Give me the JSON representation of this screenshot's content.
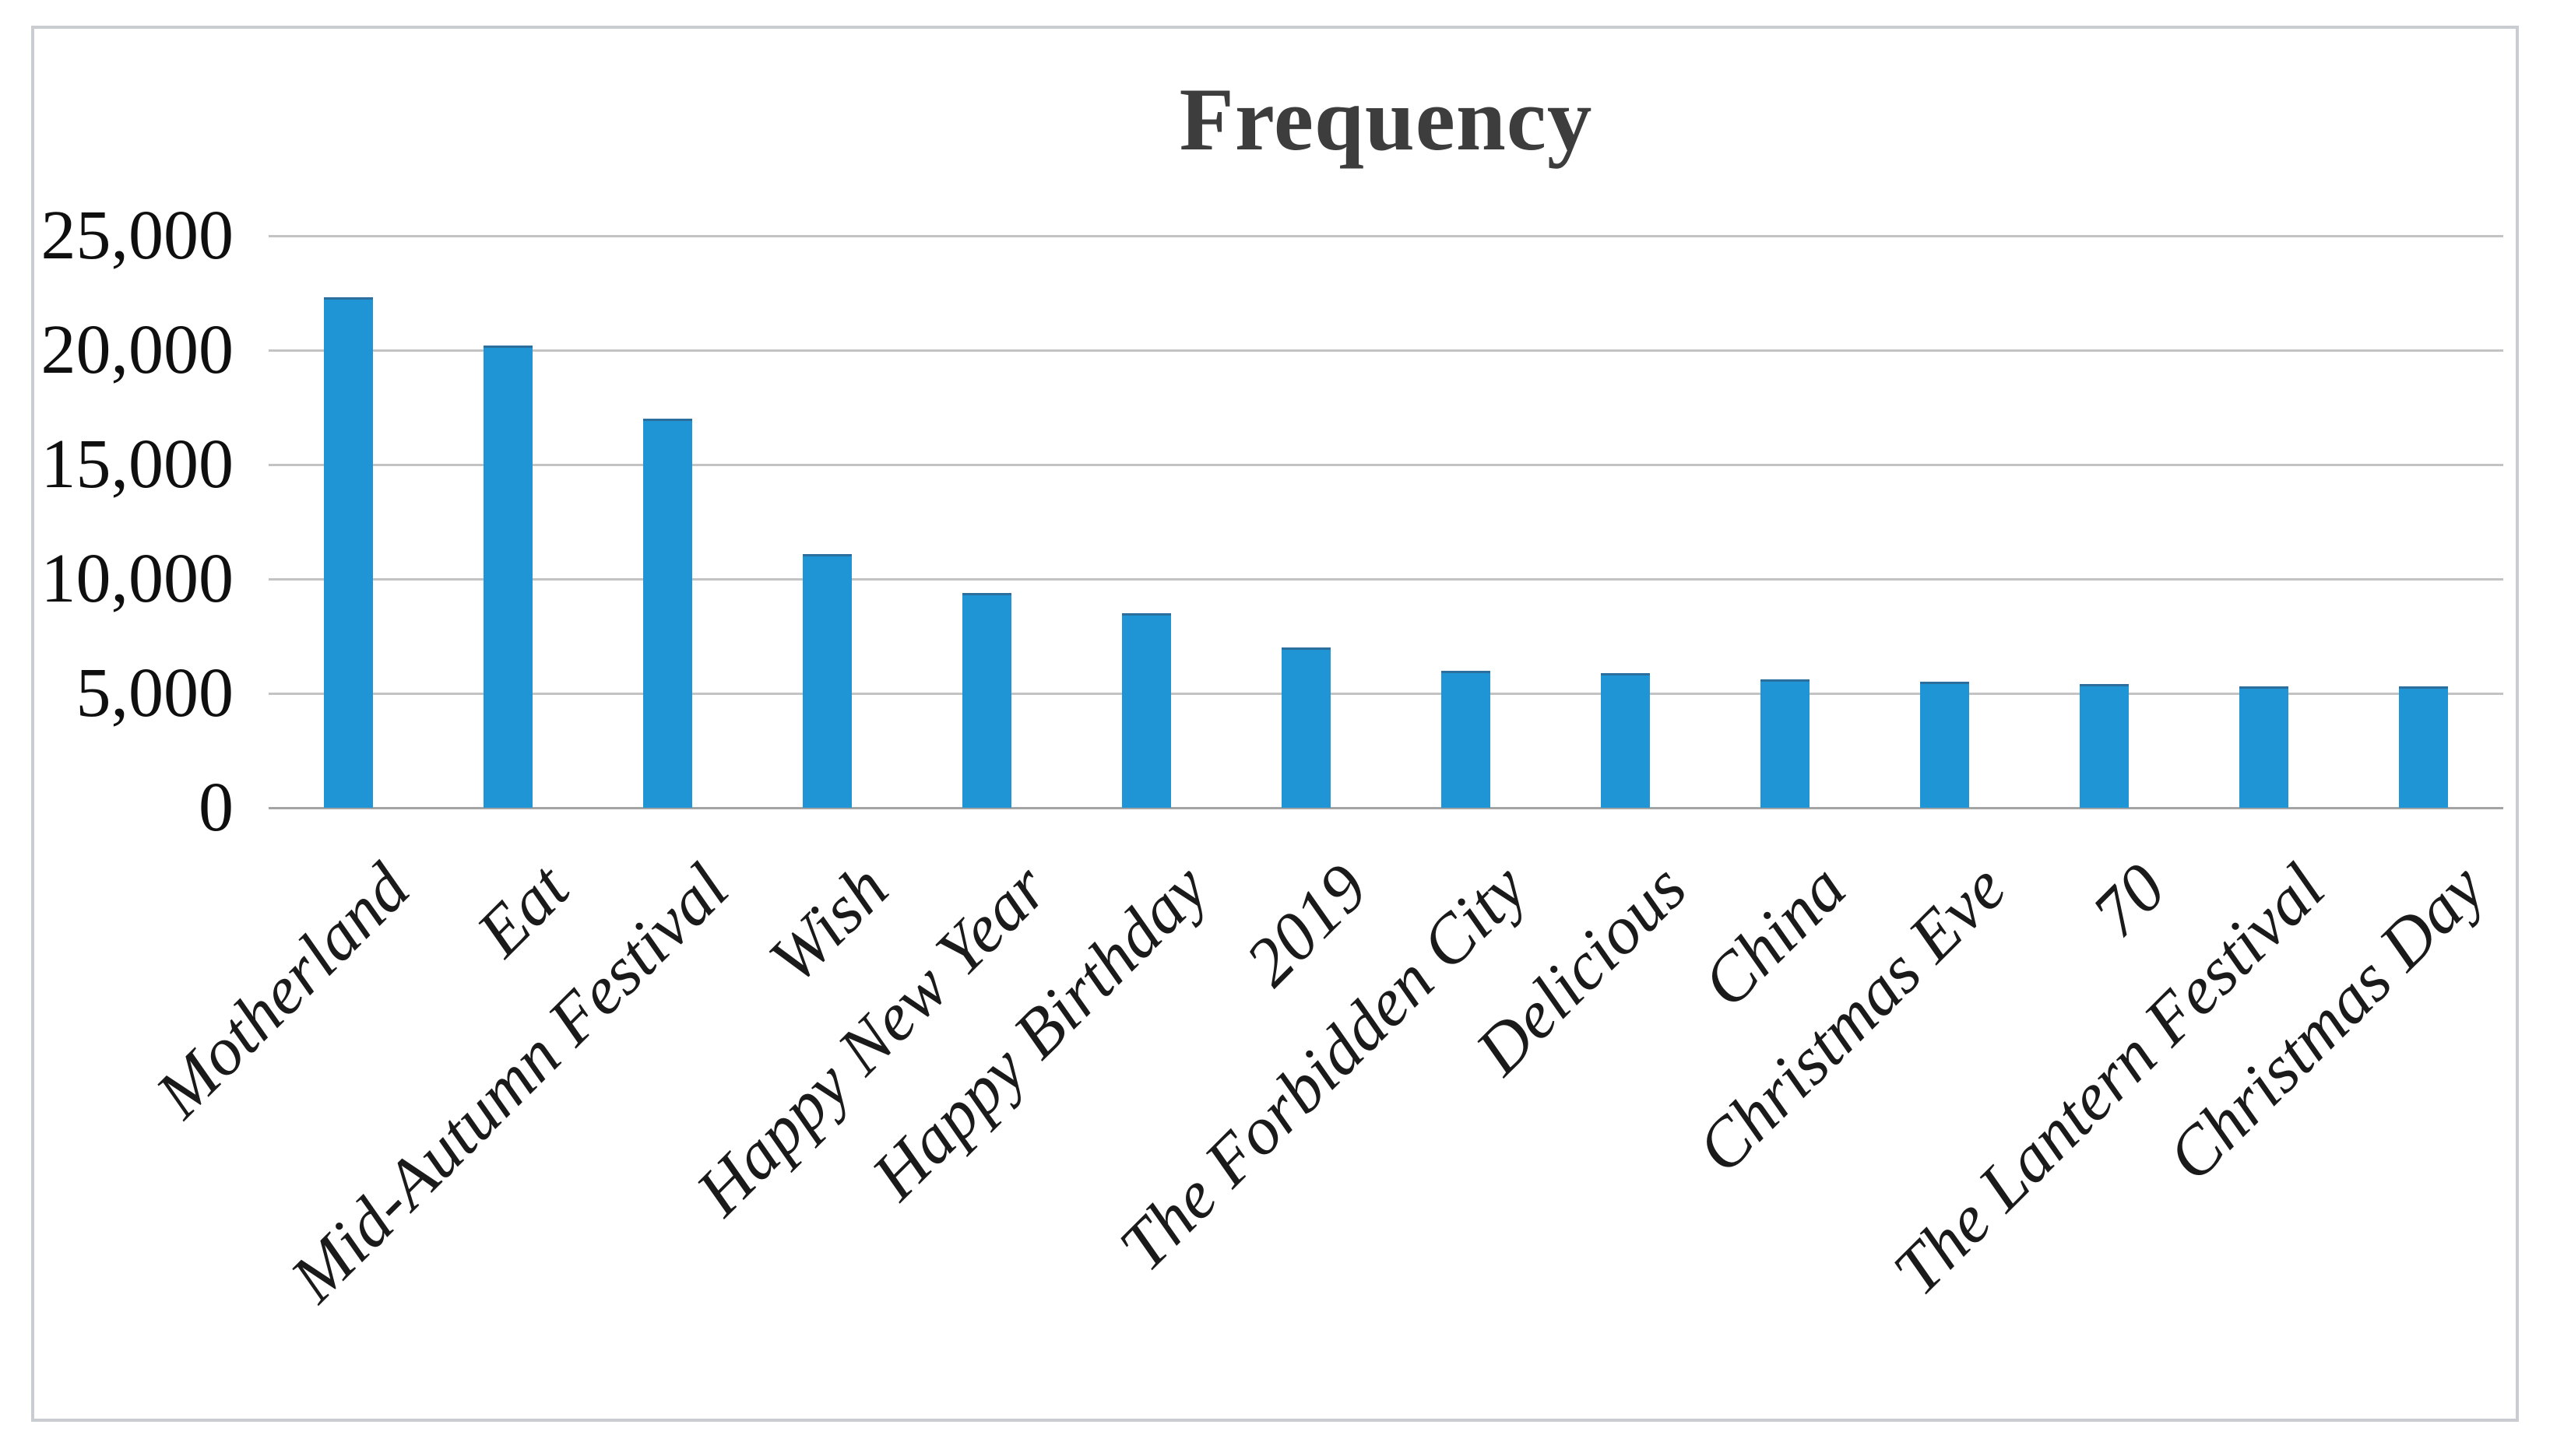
{
  "chart": {
    "frame_border_color": "#c9ccd0",
    "background": "#ffffff",
    "title_color": "#3d3d3d",
    "gridline_color": "#c3c3c3",
    "axis_line_color": "#a4a4a4",
    "tick_text_color": "#0f0f0f"
  },
  "chart_data": {
    "type": "bar",
    "title": "Frequency",
    "xlabel": "",
    "ylabel": "",
    "categories": [
      "Motherland",
      "Eat",
      "Mid-Autumn Festival",
      "Wish",
      "Happy New Year",
      "Happy Birthday",
      "2019",
      "The Forbidden City",
      "Delicious",
      "China",
      "Christmas Eve",
      "70",
      "The Lantern Festival",
      "Christmas Day"
    ],
    "values": [
      22300,
      20200,
      17000,
      11100,
      9400,
      8500,
      7000,
      6000,
      5900,
      5600,
      5500,
      5400,
      5300,
      5300
    ],
    "series_name": "Frequency",
    "bar_color": "#2095d5",
    "ylim": [
      0,
      25000
    ],
    "ytick_interval": 5000,
    "ytick_labels": [
      "0",
      "5,000",
      "10,000",
      "15,000",
      "20,000",
      "25,000"
    ],
    "grid": true,
    "legend": false,
    "x_tick_rotation_deg": 45
  }
}
